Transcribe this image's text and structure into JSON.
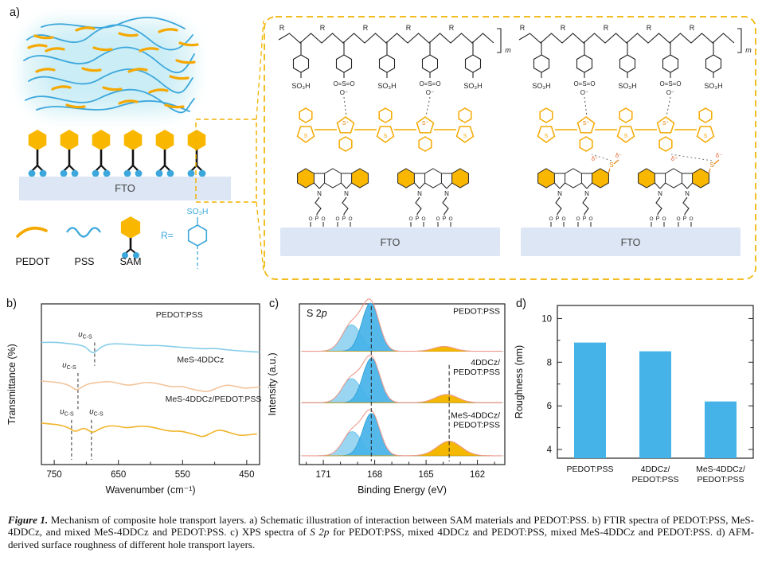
{
  "panels": {
    "a": {
      "label": "a)"
    },
    "b": {
      "label": "b)"
    },
    "c": {
      "label": "c)"
    },
    "d": {
      "label": "d)"
    }
  },
  "panel_a": {
    "fto": "FTO",
    "legend": {
      "pedot": "PEDOT",
      "pss": "PSS",
      "sam": "SAM",
      "r_eq": "R=",
      "so3h": "SO₃H"
    },
    "structure": {
      "r": "R",
      "m": "m",
      "so3h": "SO₃H",
      "oso": "O=S=O",
      "o_minus": "O⁻",
      "s": "S",
      "s_plus": "S⁺",
      "n": "N",
      "p": "P",
      "o": "O",
      "delta_minus": "δ⁻",
      "delta_plus": "δ⁺"
    },
    "colors": {
      "pedot_orange": "#F5A800",
      "pss_blue": "#3BA7DC",
      "sam_yellow": "#F9B700",
      "fto_fill": "#DCE6F5",
      "box_dash": "#F0B400",
      "glow": "#DFF4F8"
    }
  },
  "chart_data": [
    {
      "id": "ftir",
      "type": "line",
      "xlabel": "Wavenumber (cm⁻¹)",
      "ylabel": "Transmittance (%)",
      "x_ticks": [
        750,
        650,
        550,
        450
      ],
      "x_range": [
        770,
        430
      ],
      "grid": false,
      "series": [
        {
          "name": "PEDOT:PSS",
          "color": "#86CDE8",
          "label_x": 555,
          "label_y": 0.915,
          "points": [
            [
              770,
              0.76
            ],
            [
              750,
              0.762
            ],
            [
              735,
              0.756
            ],
            [
              720,
              0.75
            ],
            [
              708,
              0.742
            ],
            [
              700,
              0.728
            ],
            [
              693,
              0.7
            ],
            [
              688,
              0.694
            ],
            [
              682,
              0.714
            ],
            [
              674,
              0.738
            ],
            [
              665,
              0.75
            ],
            [
              650,
              0.752
            ],
            [
              635,
              0.748
            ],
            [
              620,
              0.744
            ],
            [
              605,
              0.74
            ],
            [
              590,
              0.742
            ],
            [
              575,
              0.737
            ],
            [
              560,
              0.732
            ],
            [
              545,
              0.728
            ],
            [
              530,
              0.724
            ],
            [
              515,
              0.72
            ],
            [
              500,
              0.724
            ],
            [
              485,
              0.716
            ],
            [
              470,
              0.71
            ],
            [
              455,
              0.706
            ],
            [
              440,
              0.702
            ],
            [
              430,
              0.7
            ]
          ]
        },
        {
          "name": "MeS-4DDCz",
          "color": "#F2C49B",
          "label_x": 522,
          "label_y": 0.635,
          "points": [
            [
              770,
              0.52
            ],
            [
              752,
              0.515
            ],
            [
              736,
              0.505
            ],
            [
              724,
              0.488
            ],
            [
              716,
              0.462
            ],
            [
              709,
              0.476
            ],
            [
              700,
              0.498
            ],
            [
              690,
              0.508
            ],
            [
              678,
              0.513
            ],
            [
              664,
              0.518
            ],
            [
              650,
              0.506
            ],
            [
              636,
              0.492
            ],
            [
              622,
              0.5
            ],
            [
              608,
              0.513
            ],
            [
              594,
              0.508
            ],
            [
              580,
              0.496
            ],
            [
              566,
              0.482
            ],
            [
              552,
              0.488
            ],
            [
              538,
              0.472
            ],
            [
              524,
              0.46
            ],
            [
              510,
              0.452
            ],
            [
              496,
              0.478
            ],
            [
              482,
              0.496
            ],
            [
              468,
              0.488
            ],
            [
              454,
              0.474
            ],
            [
              442,
              0.478
            ],
            [
              430,
              0.482
            ]
          ]
        },
        {
          "name": "MeS-4DDCz/PEDOT:PSS",
          "color": "#F0B429",
          "label_x": 502,
          "label_y": 0.39,
          "points": [
            [
              770,
              0.258
            ],
            [
              752,
              0.252
            ],
            [
              738,
              0.244
            ],
            [
              726,
              0.226
            ],
            [
              718,
              0.204
            ],
            [
              712,
              0.214
            ],
            [
              704,
              0.228
            ],
            [
              697,
              0.214
            ],
            [
              690,
              0.198
            ],
            [
              683,
              0.214
            ],
            [
              674,
              0.232
            ],
            [
              662,
              0.242
            ],
            [
              650,
              0.238
            ],
            [
              638,
              0.228
            ],
            [
              626,
              0.234
            ],
            [
              614,
              0.24
            ],
            [
              602,
              0.236
            ],
            [
              590,
              0.226
            ],
            [
              578,
              0.214
            ],
            [
              566,
              0.206
            ],
            [
              554,
              0.21
            ],
            [
              542,
              0.198
            ],
            [
              530,
              0.186
            ],
            [
              518,
              0.17
            ],
            [
              506,
              0.196
            ],
            [
              494,
              0.218
            ],
            [
              482,
              0.206
            ],
            [
              470,
              0.19
            ],
            [
              458,
              0.18
            ],
            [
              446,
              0.186
            ],
            [
              434,
              0.19
            ]
          ]
        }
      ],
      "annotations": [
        {
          "x": 687,
          "symbol": "υ",
          "sub": "C-S",
          "label_y": 0.795,
          "line_y1": 0.76,
          "line_y2": 0.615,
          "dx": -12
        },
        {
          "x": 713,
          "symbol": "υ",
          "sub": "C-S",
          "label_y": 0.605,
          "line_y1": 0.57,
          "line_y2": 0.345,
          "dx": -11
        },
        {
          "x": 723,
          "symbol": "υ",
          "sub": "C-S",
          "label_y": 0.315,
          "line_y1": 0.278,
          "line_y2": 0.03,
          "dx": -6
        },
        {
          "x": 692,
          "symbol": "υ",
          "sub": "C-S",
          "label_y": 0.315,
          "line_y1": 0.278,
          "line_y2": 0.03,
          "dx": 6
        }
      ]
    },
    {
      "id": "xps",
      "type": "area",
      "panel_text": {
        "prefix": "S 2",
        "italic": "p"
      },
      "xlabel": "Binding Energy (eV)",
      "ylabel": "Intensity (a.u.)",
      "x_ticks": [
        171,
        168,
        165,
        162
      ],
      "x_range": [
        172.4,
        160.4
      ],
      "amp": 0.3,
      "dashed_lines": [
        {
          "x": 168.2,
          "y1": 0.985,
          "y2": 0.02
        },
        {
          "x": 163.65,
          "y1": 0.62,
          "y2": 0.02
        }
      ],
      "colors": {
        "main_fill": "#45B2E8",
        "component_fill": "#9AD6F2",
        "minor_fill": "#F5B800",
        "envelope": "#EC9A8C"
      },
      "spectra": [
        {
          "label_lines": [
            "PEDOT:PSS"
          ],
          "base": 0.705,
          "peaks": [
            {
              "c": 169.35,
              "h": 0.55,
              "s": 0.55,
              "role": "comp"
            },
            {
              "c": 168.25,
              "h": 1.0,
              "s": 0.5,
              "role": "main"
            },
            {
              "c": 163.95,
              "h": 0.1,
              "s": 0.6,
              "role": "minor"
            }
          ]
        },
        {
          "label_lines": [
            "4DDCz/",
            "PEDOT:PSS"
          ],
          "base": 0.385,
          "peaks": [
            {
              "c": 169.35,
              "h": 0.5,
              "s": 0.55,
              "role": "comp"
            },
            {
              "c": 168.2,
              "h": 0.92,
              "s": 0.5,
              "role": "main"
            },
            {
              "c": 163.8,
              "h": 0.17,
              "s": 0.65,
              "role": "minor"
            }
          ]
        },
        {
          "label_lines": [
            "MeS-4DDCz/",
            "PEDOT:PSS"
          ],
          "base": 0.055,
          "peaks": [
            {
              "c": 169.3,
              "h": 0.5,
              "s": 0.55,
              "role": "comp"
            },
            {
              "c": 168.2,
              "h": 0.88,
              "s": 0.5,
              "role": "main"
            },
            {
              "c": 163.65,
              "h": 0.3,
              "s": 0.7,
              "role": "minor"
            }
          ]
        }
      ]
    },
    {
      "id": "roughness",
      "type": "bar",
      "ylabel": "Roughness (nm)",
      "y_ticks": [
        4,
        6,
        8,
        10
      ],
      "ylim": [
        3.6,
        10.6
      ],
      "bar_color": "#45B2E8",
      "categories": [
        [
          "PEDOT:PSS"
        ],
        [
          "4DDCz/",
          "PEDOT:PSS"
        ],
        [
          "MeS-4DDCz/",
          "PEDOT:PSS"
        ]
      ],
      "values": [
        8.9,
        8.5,
        6.2
      ]
    }
  ],
  "caption": {
    "figure_label": "Figure 1.",
    "text_before_s2p": " Mechanism of composite hole transport layers. a) Schematic illustration of interaction between SAM materials and PEDOT:PSS. b) FTIR spectra of PEDOT:PSS, MeS-4DDCz, and mixed MeS-4DDCz and PEDOT:PSS. c) XPS spectra of ",
    "s2p": "S 2p",
    "text_after_s2p": " for PEDOT:PSS, mixed 4DDCz and PEDOT:PSS, mixed MeS-4DDCz and PEDOT:PSS. d) AFM-derived surface roughness of different hole transport layers."
  }
}
